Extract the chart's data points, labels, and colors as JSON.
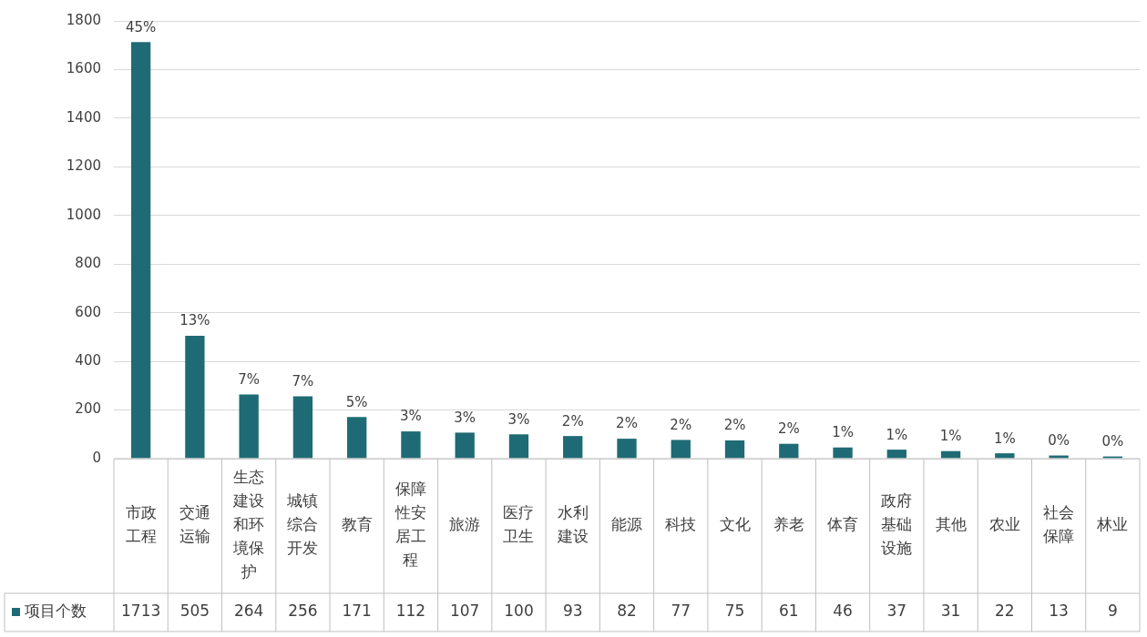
{
  "chart_data": {
    "type": "bar",
    "categories": [
      "市政工程",
      "交通运输",
      "生态建设和环境保护",
      "城镇综合开发",
      "教育",
      "保障性安居工程",
      "旅游",
      "医疗卫生",
      "水利建设",
      "能源",
      "科技",
      "文化",
      "养老",
      "体育",
      "政府基础设施",
      "其他",
      "农业",
      "社会保障",
      "林业"
    ],
    "series": [
      {
        "name": "项目个数",
        "color": "#1f6b75",
        "values": [
          1713,
          505,
          264,
          256,
          171,
          112,
          107,
          100,
          93,
          82,
          77,
          75,
          61,
          46,
          37,
          31,
          22,
          13,
          9
        ]
      }
    ],
    "annotations": [
      {
        "text": "45%",
        "x": "市政工程",
        "y": 1713
      },
      {
        "text": "13%",
        "x": "交通运输",
        "y": 505
      },
      {
        "text": "7%",
        "x": "生态建设和环境保护",
        "y": 264
      },
      {
        "text": "7%",
        "x": "城镇综合开发",
        "y": 256
      },
      {
        "text": "5%",
        "x": "教育",
        "y": 171
      },
      {
        "text": "3%",
        "x": "保障性安居工程",
        "y": 112
      },
      {
        "text": "3%",
        "x": "旅游",
        "y": 107
      },
      {
        "text": "3%",
        "x": "医疗卫生",
        "y": 100
      },
      {
        "text": "2%",
        "x": "水利建设",
        "y": 93
      },
      {
        "text": "2%",
        "x": "能源",
        "y": 82
      },
      {
        "text": "2%",
        "x": "科技",
        "y": 77
      },
      {
        "text": "2%",
        "x": "文化",
        "y": 75
      },
      {
        "text": "2%",
        "x": "养老",
        "y": 61
      },
      {
        "text": "1%",
        "x": "体育",
        "y": 46
      },
      {
        "text": "1%",
        "x": "政府基础设施",
        "y": 37
      },
      {
        "text": "1%",
        "x": "其他",
        "y": 31
      },
      {
        "text": "1%",
        "x": "农业",
        "y": 22
      },
      {
        "text": "0%",
        "x": "社会保障",
        "y": 13
      },
      {
        "text": "0%",
        "x": "林业",
        "y": 9
      }
    ],
    "ylim": [
      0,
      1800
    ],
    "yticks": [
      0,
      200,
      400,
      600,
      800,
      1000,
      1200,
      1400,
      1600,
      1800
    ],
    "grid": "y",
    "legend": "bottom",
    "data_labels": true
  }
}
